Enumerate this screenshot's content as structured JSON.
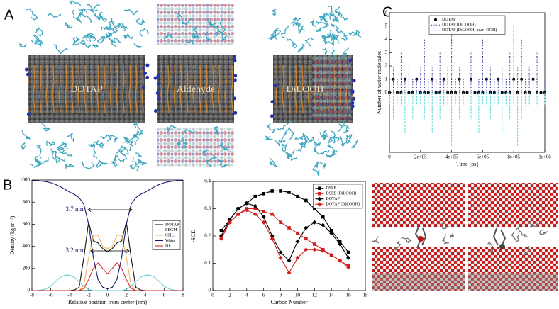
{
  "panel_labels": [
    "A",
    "B",
    "C"
  ],
  "images": {
    "membranes": [
      "DOTAP",
      "Aldehyde",
      "DiLOOH"
    ]
  },
  "chart_data": [
    {
      "type": "line",
      "xlabel": "Relative position from center (nm)",
      "ylabel": "Density (kg m⁻³)",
      "x": [
        -8,
        -7.5,
        -7,
        -6.5,
        -6,
        -5.5,
        -5,
        -4.5,
        -4,
        -3.5,
        -3,
        -2.5,
        -2,
        -1.5,
        -1,
        -0.5,
        0,
        0.5,
        1,
        1.5,
        2,
        2.5,
        3,
        3.5,
        4,
        4.5,
        5,
        5.5,
        6,
        6.5,
        7,
        7.5,
        8
      ],
      "xlim": [
        -8,
        8
      ],
      "xticks": [
        -8,
        -6,
        -4,
        -2,
        0,
        2,
        4,
        6,
        8
      ],
      "ylim": [
        0,
        1000
      ],
      "yticks": [
        0,
        200,
        400,
        600,
        800,
        1000
      ],
      "legend": "right",
      "annotations": [
        "3.7 nm",
        "3.2 nm"
      ],
      "series": [
        {
          "name": "DOTAP",
          "color": "#111111",
          "values": [
            0,
            0,
            0,
            0,
            0,
            0,
            0,
            0,
            0,
            5,
            30,
            300,
            620,
            450,
            430,
            380,
            350,
            380,
            430,
            450,
            620,
            300,
            30,
            5,
            0,
            0,
            0,
            0,
            0,
            0,
            0,
            0,
            0
          ]
        },
        {
          "name": "PEGM",
          "color": "#5fd3d3",
          "values": [
            0,
            0,
            5,
            15,
            40,
            80,
            120,
            140,
            140,
            120,
            80,
            40,
            10,
            0,
            0,
            0,
            0,
            0,
            0,
            0,
            10,
            40,
            80,
            120,
            140,
            140,
            120,
            80,
            40,
            15,
            5,
            0,
            0
          ]
        },
        {
          "name": "CHL1",
          "color": "#f2b55a",
          "values": [
            0,
            0,
            0,
            0,
            0,
            0,
            0,
            0,
            0,
            0,
            0,
            50,
            300,
            500,
            500,
            400,
            380,
            400,
            500,
            500,
            300,
            50,
            0,
            0,
            0,
            0,
            0,
            0,
            0,
            0,
            0,
            0,
            0
          ]
        },
        {
          "name": "Water",
          "color": "#16166e",
          "values": [
            995,
            995,
            990,
            985,
            975,
            960,
            940,
            915,
            890,
            870,
            840,
            780,
            600,
            300,
            100,
            30,
            15,
            30,
            100,
            300,
            600,
            780,
            840,
            870,
            890,
            915,
            940,
            960,
            975,
            985,
            990,
            995,
            995
          ]
        },
        {
          "name": "HP",
          "color": "#d62728",
          "values": [
            0,
            0,
            0,
            0,
            0,
            0,
            0,
            0,
            0,
            0,
            0,
            20,
            100,
            200,
            250,
            200,
            150,
            200,
            250,
            200,
            100,
            20,
            0,
            0,
            0,
            0,
            0,
            0,
            0,
            0,
            0,
            0,
            0
          ]
        }
      ]
    },
    {
      "type": "line",
      "xlabel": "Carbon Number",
      "ylabel": "-SCD",
      "x": [
        1,
        2,
        3,
        4,
        5,
        6,
        7,
        8,
        9,
        10,
        11,
        12,
        13,
        14,
        15,
        16
      ],
      "xlim": [
        0,
        18
      ],
      "xticks": [
        0,
        2,
        4,
        6,
        8,
        10,
        12,
        14,
        16,
        18
      ],
      "ylim": [
        0,
        0.4
      ],
      "yticks": [
        0,
        0.1,
        0.2,
        0.3,
        0.4
      ],
      "legend": "upper right",
      "series": [
        {
          "name": "DSPE",
          "color": "#000000",
          "marker": "square",
          "values": [
            0.22,
            0.26,
            0.3,
            0.32,
            0.345,
            0.355,
            0.365,
            0.365,
            0.36,
            0.345,
            0.33,
            0.3,
            0.27,
            0.22,
            0.18,
            0.14
          ]
        },
        {
          "name": "DSPE (DiLOOH)",
          "color": "#d41c1c",
          "marker": "square",
          "values": [
            0.2,
            0.25,
            0.28,
            0.3,
            0.3,
            0.29,
            0.28,
            0.25,
            0.23,
            0.21,
            0.19,
            0.17,
            0.15,
            0.13,
            0.11,
            0.09
          ]
        },
        {
          "name": "DOTAP",
          "color": "#000000",
          "marker": "diamond",
          "values": [
            0.2,
            0.26,
            0.3,
            0.32,
            0.31,
            0.27,
            0.2,
            0.14,
            0.11,
            0.18,
            0.23,
            0.25,
            0.24,
            0.21,
            0.17,
            0.12
          ]
        },
        {
          "name": "DOTAP (DiLOOH)",
          "color": "#d41c1c",
          "marker": "diamond",
          "values": [
            0.19,
            0.25,
            0.28,
            0.295,
            0.28,
            0.25,
            0.19,
            0.12,
            0.065,
            0.12,
            0.15,
            0.15,
            0.145,
            0.13,
            0.11,
            0.085
          ]
        }
      ]
    },
    {
      "type": "impulse",
      "xlabel": "Time [ps]",
      "ylabel": "Number of water molecules",
      "x": [
        0,
        25000,
        50000,
        75000,
        100000,
        125000,
        150000,
        175000,
        200000,
        225000,
        250000,
        275000,
        300000,
        325000,
        350000,
        375000,
        400000,
        425000,
        450000,
        475000,
        500000,
        525000,
        550000,
        575000,
        600000,
        625000,
        650000,
        675000,
        700000,
        725000,
        750000,
        775000,
        800000,
        825000,
        850000,
        875000,
        900000,
        925000,
        950000,
        975000,
        1000000
      ],
      "xlim": [
        0,
        1000000
      ],
      "xticks": [
        0,
        {
          "value": 200000,
          "label": "2e+05"
        },
        {
          "value": 400000,
          "label": "4e+05"
        },
        {
          "value": 600000,
          "label": "6e+05"
        },
        {
          "value": 800000,
          "label": "8e+05"
        },
        {
          "value": 1000000,
          "label": "1e+06"
        }
      ],
      "ylim": [
        -4.5,
        6
      ],
      "yticks": [
        0,
        1,
        2,
        3,
        4,
        5,
        6
      ],
      "legend": "upper center",
      "series": [
        {
          "name": "DOTAP",
          "color": "#000000",
          "style": "dots",
          "values": [
            0,
            1,
            0,
            0,
            1,
            0,
            0,
            1,
            0,
            0,
            0,
            1,
            0,
            0,
            1,
            0,
            0,
            0,
            1,
            0,
            0,
            1,
            0,
            0,
            0,
            1,
            0,
            0,
            1,
            0,
            0,
            0,
            1,
            0,
            1,
            0,
            0,
            1,
            0,
            0,
            0
          ]
        },
        {
          "name": "DOTAP (DiLOOH)",
          "color": "#1a1a8c",
          "style": "dotted",
          "values": [
            1,
            2,
            1,
            3,
            1,
            2,
            1,
            1,
            2,
            4,
            1,
            2,
            1,
            3,
            1,
            2,
            5,
            1,
            2,
            1,
            1,
            3,
            2,
            1,
            4,
            1,
            2,
            1,
            1,
            2,
            1,
            3,
            5,
            2,
            4,
            1,
            2,
            1,
            3,
            1,
            1
          ]
        },
        {
          "name": "DOTAP (DiLOOH, near -OOH)",
          "color": "#4fd6d6",
          "style": "dashed",
          "values": [
            -1,
            -2,
            -1,
            -1,
            -3,
            -1,
            -2,
            -1,
            -1,
            -2,
            -1,
            -3,
            -1,
            -2,
            -1,
            -1,
            -4,
            -1,
            -2,
            -1,
            -1,
            -2,
            -1,
            -3,
            -1,
            -1,
            -2,
            -1,
            -1,
            -3,
            -1,
            -2,
            -1,
            -4,
            -2,
            -1,
            -1,
            -2,
            -1,
            -1,
            -1
          ]
        }
      ]
    }
  ]
}
